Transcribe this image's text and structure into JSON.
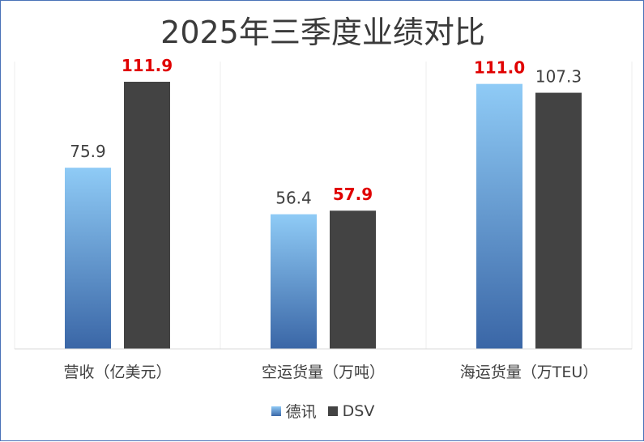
{
  "chart_data": {
    "type": "bar",
    "title": "2025年三季度业绩对比",
    "categories": [
      "营收（亿美元）",
      "空运货量（万吨）",
      "海运货量（万TEU）"
    ],
    "series": [
      {
        "name": "德讯",
        "values": [
          75.9,
          56.4,
          111.0
        ],
        "value_labels": [
          "75.9",
          "56.4",
          "111.0"
        ],
        "color": "#4a86c8"
      },
      {
        "name": "DSV",
        "values": [
          111.9,
          57.9,
          107.3
        ],
        "value_labels": [
          "111.9",
          "57.9",
          "107.3"
        ],
        "color": "#434343"
      }
    ],
    "highlight": [
      [
        false,
        false,
        true
      ],
      [
        true,
        true,
        false
      ]
    ],
    "highlight_color": "#e00000",
    "ylim": [
      0,
      125
    ],
    "grid": false,
    "legend_position": "bottom"
  }
}
